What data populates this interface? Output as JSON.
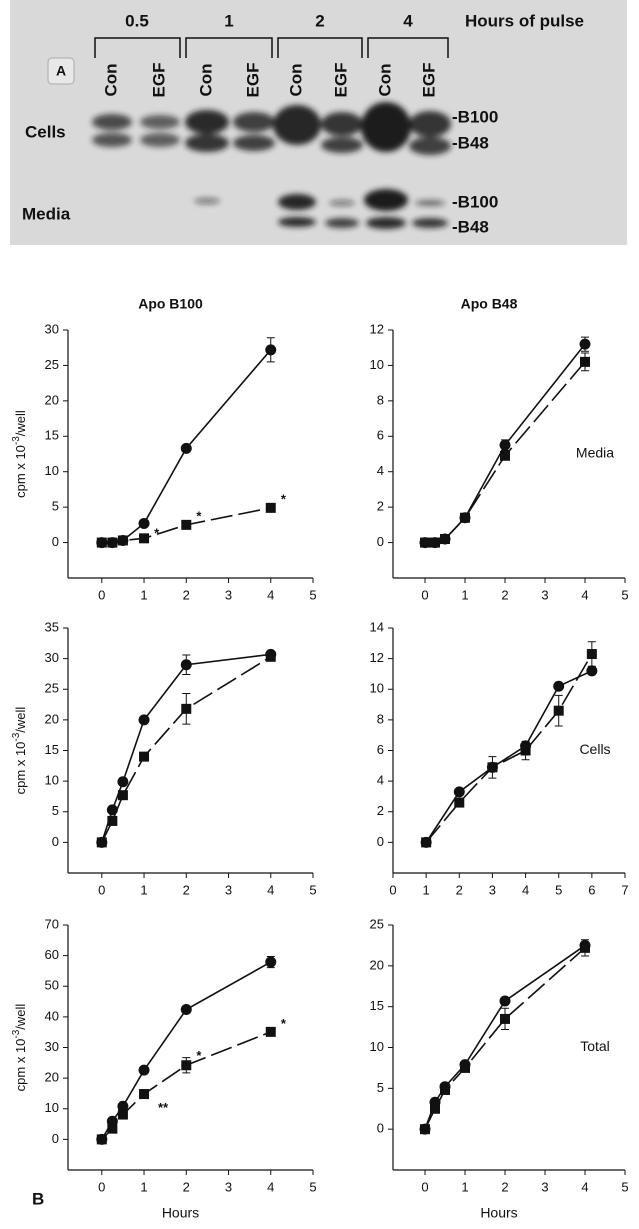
{
  "gel": {
    "panel_label": "A",
    "hours_title": "Hours of pulse",
    "times": [
      "0.5",
      "1",
      "2",
      "4"
    ],
    "lanes": [
      "Con",
      "EGF",
      "Con",
      "EGF",
      "Con",
      "EGF",
      "Con",
      "EGF"
    ],
    "rows": [
      "Cells",
      "Media"
    ],
    "bands": [
      "-B100",
      "-B48",
      "-B100",
      "-B48"
    ]
  },
  "panel_b_label": "B",
  "chart_data": [
    {
      "type": "line",
      "title": "Apo B100",
      "ylabel": {
        "text": "cpm x 10",
        "sup": "-3",
        "suffix": "/well"
      },
      "x": [
        0,
        0.25,
        0.5,
        1,
        2,
        4
      ],
      "xlim": [
        -0.8,
        5
      ],
      "xticks": [
        0,
        1,
        2,
        3,
        4,
        5
      ],
      "ylim": [
        -5,
        30
      ],
      "yticks": [
        0,
        5,
        10,
        15,
        20,
        25,
        30
      ],
      "series": [
        {
          "color": "#111111",
          "marker": "circle",
          "line_style": "solid",
          "values": [
            0,
            0,
            0.3,
            2.7,
            13.3,
            27.2
          ],
          "errors": [
            null,
            null,
            null,
            null,
            null,
            1.7
          ]
        },
        {
          "color": "#111111",
          "marker": "square",
          "line_style": "dashed",
          "values": [
            0,
            0,
            0.3,
            0.6,
            2.5,
            4.9
          ],
          "errors": [
            null,
            null,
            null,
            null,
            null,
            null
          ]
        }
      ],
      "annotations": [
        {
          "text": "*",
          "x": 1.3,
          "y": 1.2
        },
        {
          "text": "*",
          "x": 2.3,
          "y": 3.6
        },
        {
          "text": "*",
          "x": 4.3,
          "y": 6
        }
      ]
    },
    {
      "type": "line",
      "title": "Apo B48",
      "side_label": "Media",
      "x": [
        0,
        0.25,
        0.5,
        1,
        2,
        4
      ],
      "xlim": [
        -0.8,
        5
      ],
      "xticks": [
        0,
        1,
        2,
        3,
        4,
        5
      ],
      "ylim": [
        -2,
        12
      ],
      "yticks": [
        0,
        2,
        4,
        6,
        8,
        10,
        12
      ],
      "series": [
        {
          "color": "#111111",
          "marker": "circle",
          "line_style": "solid",
          "values": [
            0,
            0,
            0.2,
            1.4,
            5.5,
            11.2
          ],
          "errors": [
            null,
            null,
            null,
            null,
            0.3,
            0.4
          ]
        },
        {
          "color": "#111111",
          "marker": "square",
          "line_style": "dashed",
          "values": [
            0,
            0,
            0.2,
            1.4,
            4.9,
            10.2
          ],
          "errors": [
            null,
            null,
            null,
            null,
            null,
            0.5
          ]
        }
      ]
    },
    {
      "type": "line",
      "ylabel": {
        "text": "cpm x 10",
        "sup": "-3",
        "suffix": "/well"
      },
      "x": [
        0,
        0.25,
        0.5,
        1,
        2,
        4
      ],
      "xlim": [
        -0.8,
        5
      ],
      "xticks": [
        0,
        1,
        2,
        3,
        4,
        5
      ],
      "ylim": [
        -5,
        35
      ],
      "yticks": [
        0,
        5,
        10,
        15,
        20,
        25,
        30,
        35
      ],
      "series": [
        {
          "color": "#111111",
          "marker": "circle",
          "line_style": "solid",
          "values": [
            0,
            5.3,
            9.9,
            20,
            29,
            30.7
          ],
          "errors": [
            null,
            null,
            null,
            null,
            1.6,
            null
          ]
        },
        {
          "color": "#111111",
          "marker": "square",
          "line_style": "dashed",
          "values": [
            0,
            3.5,
            7.7,
            14,
            21.8,
            30.3
          ],
          "errors": [
            null,
            null,
            null,
            null,
            2.5,
            null
          ]
        }
      ]
    },
    {
      "type": "line",
      "side_label": "Cells",
      "x": [
        1,
        2,
        3,
        4,
        5,
        6
      ],
      "xlim": [
        0,
        7
      ],
      "xticks": [
        0,
        1,
        2,
        3,
        4,
        5,
        6,
        7
      ],
      "ylim": [
        -2,
        14
      ],
      "yticks": [
        0,
        2,
        4,
        6,
        8,
        10,
        12,
        14
      ],
      "series": [
        {
          "color": "#111111",
          "marker": "circle",
          "line_style": "solid",
          "values": [
            0,
            3.3,
            4.9,
            6.3,
            10.2,
            11.2
          ],
          "errors": [
            null,
            null,
            null,
            null,
            null,
            null
          ]
        },
        {
          "color": "#111111",
          "marker": "square",
          "line_style": "dashed",
          "values": [
            0,
            2.6,
            4.9,
            6,
            8.6,
            12.3
          ],
          "errors": [
            null,
            null,
            0.7,
            0.6,
            1,
            0.8
          ]
        }
      ]
    },
    {
      "type": "line",
      "ylabel": {
        "text": "cpm x 10",
        "sup": "-3",
        "suffix": "/well"
      },
      "xlabel": "Hours",
      "x": [
        0,
        0.25,
        0.5,
        1,
        2,
        4
      ],
      "xlim": [
        -0.8,
        5
      ],
      "xticks": [
        0,
        1,
        2,
        3,
        4,
        5
      ],
      "ylim": [
        -10,
        70
      ],
      "yticks": [
        0,
        10,
        20,
        30,
        40,
        50,
        60,
        70
      ],
      "series": [
        {
          "color": "#111111",
          "marker": "circle",
          "line_style": "solid",
          "values": [
            0,
            5.9,
            10.8,
            22.6,
            42.4,
            57.9
          ],
          "errors": [
            null,
            null,
            null,
            null,
            null,
            1.8
          ]
        },
        {
          "color": "#111111",
          "marker": "square",
          "line_style": "dashed",
          "values": [
            0,
            3.5,
            8.1,
            14.8,
            24.2,
            35.1
          ],
          "errors": [
            null,
            null,
            null,
            null,
            2.5,
            null
          ]
        }
      ],
      "annotations": [
        {
          "text": "**",
          "x": 1.45,
          "y": 10
        },
        {
          "text": "*",
          "x": 2.3,
          "y": 27
        },
        {
          "text": "*",
          "x": 4.3,
          "y": 37.5
        }
      ]
    },
    {
      "type": "line",
      "side_label": "Total",
      "xlabel": "Hours",
      "x": [
        0,
        0.25,
        0.5,
        1,
        2,
        4
      ],
      "xlim": [
        -0.8,
        5
      ],
      "xticks": [
        0,
        1,
        2,
        3,
        4,
        5
      ],
      "ylim": [
        -5,
        25
      ],
      "yticks": [
        0,
        5,
        10,
        15,
        20,
        25
      ],
      "series": [
        {
          "color": "#111111",
          "marker": "circle",
          "line_style": "solid",
          "values": [
            0,
            3.3,
            5.2,
            7.9,
            15.7,
            22.5
          ],
          "errors": [
            null,
            null,
            null,
            null,
            null,
            null
          ]
        },
        {
          "color": "#111111",
          "marker": "square",
          "line_style": "dashed",
          "values": [
            0,
            2.5,
            4.8,
            7.5,
            13.5,
            22.2
          ],
          "errors": [
            null,
            null,
            null,
            null,
            1.3,
            1
          ]
        }
      ]
    }
  ]
}
